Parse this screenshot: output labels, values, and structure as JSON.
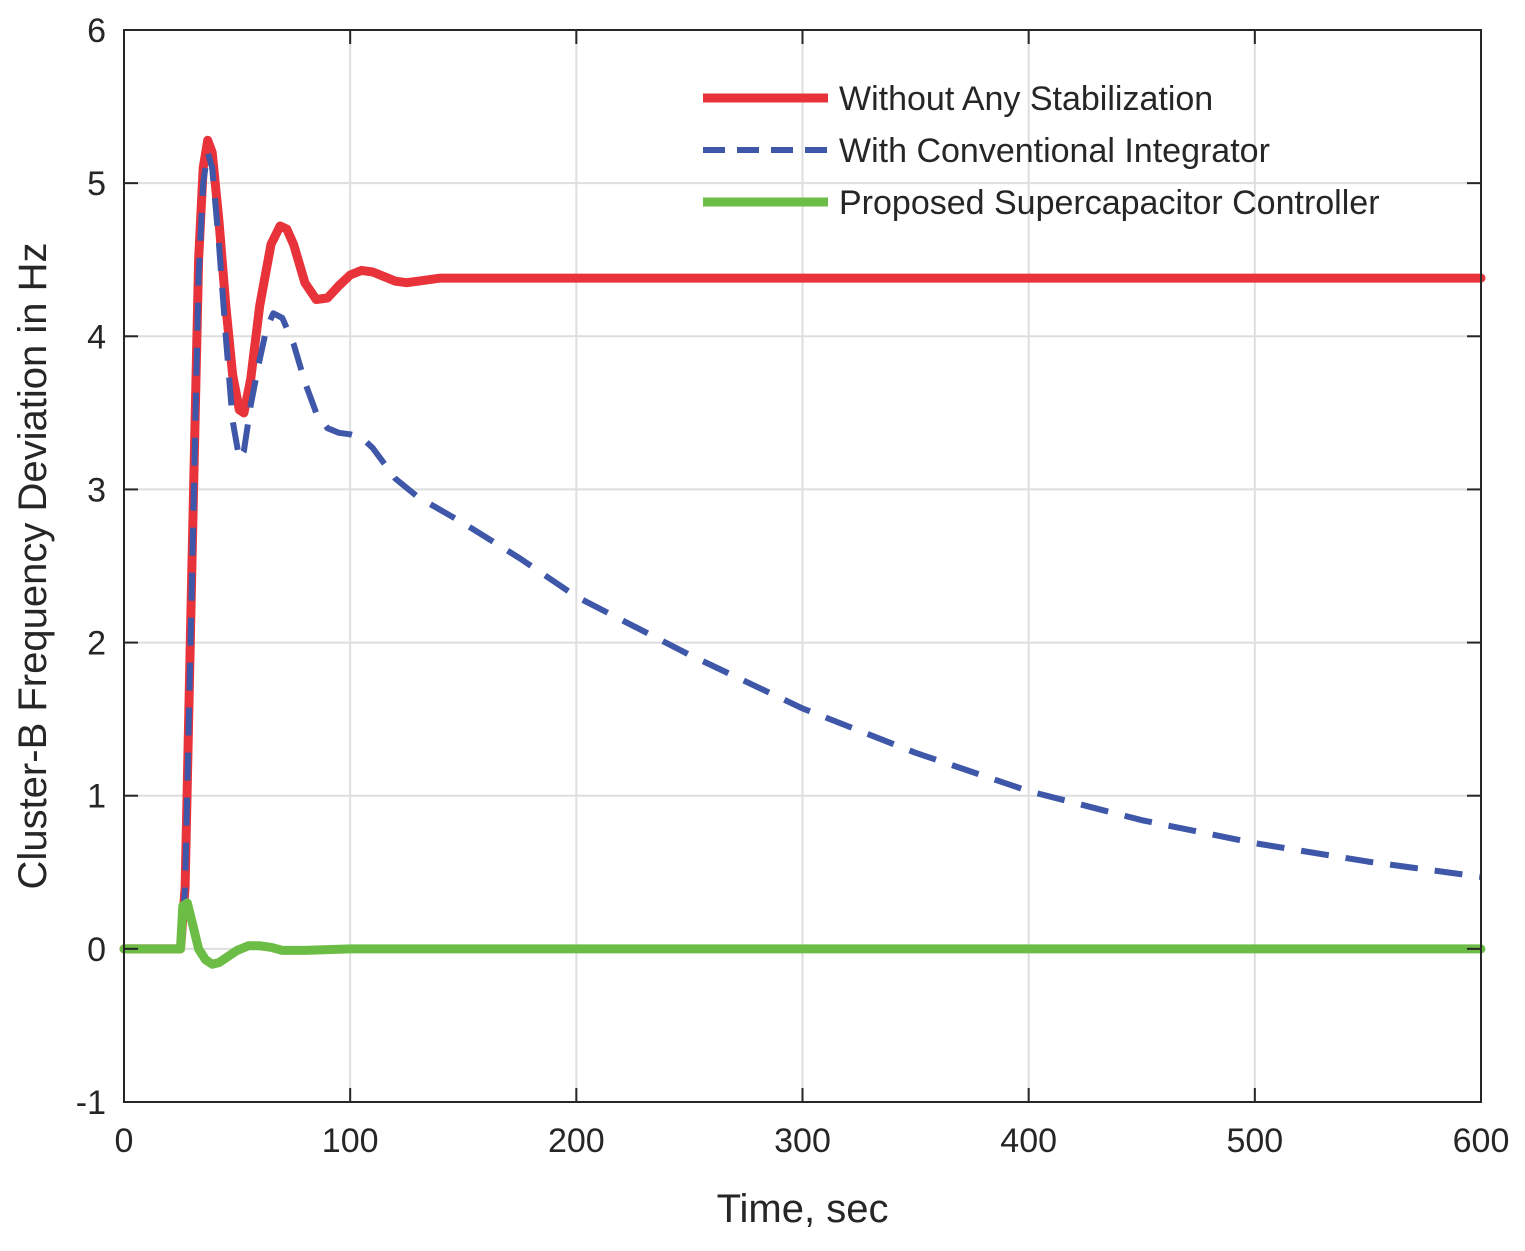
{
  "chart_data": {
    "type": "line",
    "title": "",
    "xlabel": "Time, sec",
    "ylabel": "Cluster-B Frequency Deviation in Hz",
    "xlim": [
      0,
      600
    ],
    "ylim": [
      -1,
      6
    ],
    "xticks": [
      0,
      100,
      200,
      300,
      400,
      500,
      600
    ],
    "yticks": [
      -1,
      0,
      1,
      2,
      3,
      4,
      5,
      6
    ],
    "xtick_labels": [
      "0",
      "100",
      "200",
      "300",
      "400",
      "500",
      "600"
    ],
    "ytick_labels": [
      "-1",
      "0",
      "1",
      "2",
      "3",
      "4",
      "5",
      "6"
    ],
    "grid": true,
    "legend_position": "top-right",
    "series": [
      {
        "name": "Without Any Stabilization",
        "color": "#e8333a",
        "style": "solid",
        "x": [
          0,
          25,
          27,
          30,
          33,
          35,
          37,
          39,
          42,
          45,
          48,
          51,
          53,
          56,
          60,
          65,
          69,
          72,
          75,
          80,
          85,
          90,
          95,
          100,
          105,
          110,
          115,
          120,
          125,
          130,
          140,
          150,
          160,
          200,
          300,
          400,
          500,
          600
        ],
        "y": [
          0,
          0,
          0.4,
          2.5,
          4.5,
          5.1,
          5.28,
          5.2,
          4.75,
          4.2,
          3.75,
          3.52,
          3.5,
          3.72,
          4.2,
          4.6,
          4.72,
          4.7,
          4.6,
          4.35,
          4.24,
          4.25,
          4.33,
          4.4,
          4.43,
          4.42,
          4.39,
          4.36,
          4.35,
          4.36,
          4.38,
          4.38,
          4.38,
          4.38,
          4.38,
          4.38,
          4.38,
          4.38
        ]
      },
      {
        "name": "With Conventional Integrator",
        "color": "#3f57a8",
        "style": "dashed",
        "x": [
          0,
          25,
          27,
          30,
          33,
          35,
          37,
          39,
          42,
          45,
          48,
          51,
          53,
          56,
          60,
          63,
          66,
          70,
          75,
          80,
          85,
          90,
          95,
          100,
          105,
          110,
          115,
          120,
          130,
          150,
          175,
          200,
          250,
          300,
          350,
          400,
          450,
          500,
          550,
          600
        ],
        "y": [
          0,
          0,
          0.4,
          2.4,
          4.4,
          5.0,
          5.2,
          5.1,
          4.6,
          4.0,
          3.45,
          3.2,
          3.25,
          3.55,
          3.85,
          4.05,
          4.15,
          4.12,
          3.95,
          3.7,
          3.5,
          3.4,
          3.37,
          3.36,
          3.34,
          3.27,
          3.17,
          3.07,
          2.95,
          2.78,
          2.55,
          2.3,
          1.92,
          1.57,
          1.28,
          1.03,
          0.84,
          0.69,
          0.57,
          0.47
        ]
      },
      {
        "name": "Proposed Supercapacitor Controller",
        "color": "#6cbd45",
        "style": "solid",
        "x": [
          0,
          25,
          26,
          28,
          30,
          33,
          36,
          39,
          42,
          45,
          50,
          55,
          60,
          65,
          70,
          80,
          100,
          200,
          300,
          400,
          500,
          600
        ],
        "y": [
          0,
          0,
          0.28,
          0.3,
          0.18,
          0.0,
          -0.07,
          -0.1,
          -0.09,
          -0.06,
          -0.01,
          0.02,
          0.02,
          0.01,
          -0.01,
          -0.01,
          0.0,
          0.0,
          0.0,
          0.0,
          0.0,
          0.0
        ]
      }
    ]
  }
}
